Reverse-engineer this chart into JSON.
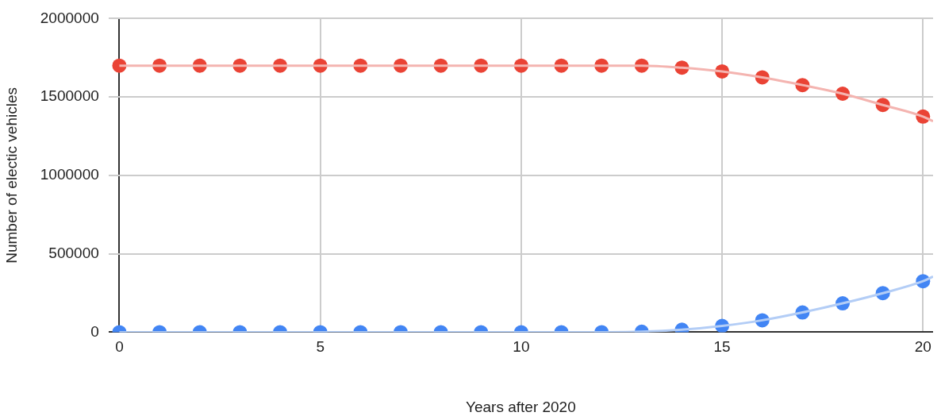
{
  "chart_data": {
    "type": "scatter",
    "xlabel": "Years after 2020",
    "ylabel": "Number of electic vehicles",
    "x": [
      0,
      1,
      2,
      3,
      4,
      5,
      6,
      7,
      8,
      9,
      10,
      11,
      12,
      13,
      14,
      15,
      16,
      17,
      18,
      19,
      20
    ],
    "series": [
      {
        "type": "line",
        "color": "#f4b4b0",
        "x": [
          0,
          1,
          2,
          3,
          4,
          5,
          6,
          7,
          8,
          9,
          10,
          11,
          12,
          13,
          14,
          15,
          16,
          17,
          18,
          19,
          20,
          20.25
        ],
        "values": [
          1700000,
          1700000,
          1700000,
          1700000,
          1700000,
          1700000,
          1700000,
          1700000,
          1700000,
          1700000,
          1700000,
          1700000,
          1700000,
          1700000,
          1687000,
          1663000,
          1625000,
          1576000,
          1521000,
          1449000,
          1375000,
          1345000
        ],
        "marker": "none"
      },
      {
        "type": "line",
        "color": "#b3cdf6",
        "x": [
          0,
          1,
          2,
          3,
          4,
          5,
          6,
          7,
          8,
          9,
          10,
          11,
          12,
          13,
          14,
          15,
          16,
          17,
          18,
          19,
          20,
          20.25
        ],
        "values": [
          0,
          0,
          0,
          0,
          0,
          0,
          0,
          0,
          0,
          0,
          0,
          0,
          0,
          3000,
          16000,
          40000,
          76000,
          126000,
          184000,
          249000,
          325000,
          355000
        ],
        "marker": "none"
      },
      {
        "color": "#ea4335",
        "values": [
          1700000,
          1700000,
          1700000,
          1700000,
          1700000,
          1700000,
          1700000,
          1700000,
          1700000,
          1700000,
          1700000,
          1700000,
          1700000,
          1700000,
          1687000,
          1663000,
          1625000,
          1576000,
          1521000,
          1449000,
          1375000
        ]
      },
      {
        "color": "#4285f4",
        "values": [
          0,
          0,
          0,
          0,
          0,
          0,
          0,
          0,
          0,
          0,
          0,
          0,
          0,
          3000,
          16000,
          40000,
          76000,
          126000,
          184000,
          249000,
          325000
        ]
      }
    ],
    "marker": "circle",
    "xlim": [
      -0.27,
      20.25
    ],
    "xticks": [
      0,
      5,
      10,
      15,
      20
    ],
    "ylim": [
      0,
      2000000
    ],
    "yticks": [
      0,
      500000,
      1000000,
      1500000,
      2000000
    ],
    "grid": true,
    "legend": false
  }
}
